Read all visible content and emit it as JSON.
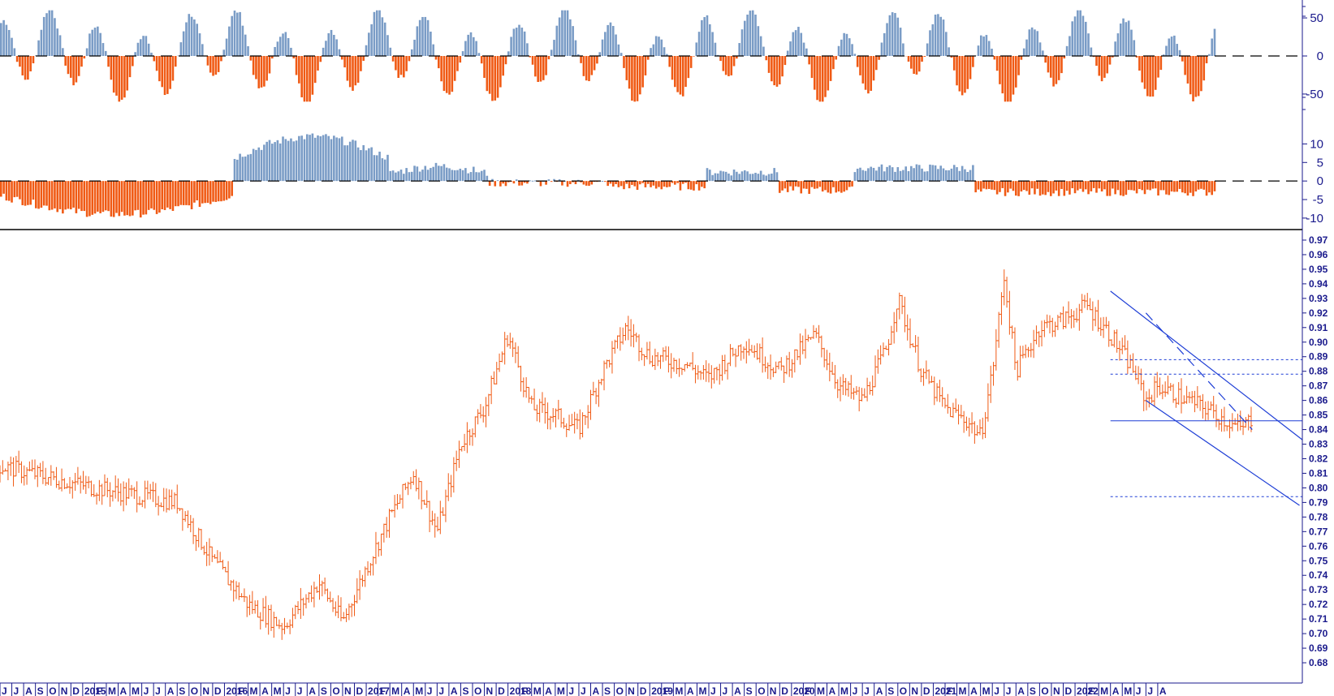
{
  "colors": {
    "positive": "#7a9cc6",
    "negative": "#f05a14",
    "price": "#f05a14",
    "trend": "#1f3fd6",
    "axis": "#1a1a8c"
  },
  "chart_data": [
    {
      "type": "bar",
      "panel": "oscillator-upper",
      "yticks": [
        50,
        0,
        -50
      ],
      "ylim": [
        -65,
        65
      ],
      "zero_line": "dashed"
    },
    {
      "type": "bar",
      "panel": "oscillator-lower",
      "yticks": [
        10,
        5,
        0,
        -5,
        -10
      ],
      "ylim": [
        -12,
        16
      ],
      "zero_line": "dashed"
    },
    {
      "type": "line",
      "panel": "price",
      "yticks": [
        "0.97",
        "0.96",
        "0.95",
        "0.94",
        "0.93",
        "0.92",
        "0.91",
        "0.90",
        "0.89",
        "0.88",
        "0.87",
        "0.86",
        "0.85",
        "0.84",
        "0.83",
        "0.82",
        "0.81",
        "0.80",
        "0.79",
        "0.78",
        "0.77",
        "0.76",
        "0.75",
        "0.74",
        "0.73",
        "0.72",
        "0.71",
        "0.70",
        "0.69",
        "0.68"
      ],
      "ylim": [
        0.67,
        0.975
      ],
      "x_labels": [
        "J",
        "J",
        "A",
        "S",
        "O",
        "N",
        "D",
        "2015",
        "F",
        "M",
        "A",
        "M",
        "J",
        "J",
        "A",
        "S",
        "O",
        "N",
        "D",
        "2016",
        "F",
        "M",
        "A",
        "M",
        "J",
        "J",
        "A",
        "S",
        "O",
        "N",
        "D",
        "2017",
        "F",
        "M",
        "A",
        "M",
        "J",
        "J",
        "A",
        "S",
        "O",
        "N",
        "D",
        "2018",
        "F",
        "M",
        "A",
        "M",
        "J",
        "J",
        "A",
        "S",
        "O",
        "N",
        "D",
        "2019",
        "F",
        "M",
        "A",
        "M",
        "J",
        "J",
        "A",
        "S",
        "O",
        "N",
        "D",
        "2020",
        "F",
        "M",
        "A",
        "M",
        "J",
        "J",
        "A",
        "S",
        "O",
        "N",
        "D",
        "2021",
        "F",
        "M",
        "A",
        "M",
        "J",
        "J",
        "A",
        "S",
        "O",
        "N",
        "D",
        "2022",
        "F",
        "M",
        "A",
        "M",
        "J",
        "J",
        "A"
      ],
      "anchors": [
        [
          0,
          0.815
        ],
        [
          8,
          0.8
        ],
        [
          15,
          0.79
        ],
        [
          18,
          0.75
        ],
        [
          21,
          0.72
        ],
        [
          24,
          0.705
        ],
        [
          27,
          0.735
        ],
        [
          29,
          0.708
        ],
        [
          31,
          0.745
        ],
        [
          33,
          0.78
        ],
        [
          35,
          0.81
        ],
        [
          37,
          0.77
        ],
        [
          39,
          0.83
        ],
        [
          41,
          0.855
        ],
        [
          43,
          0.905
        ],
        [
          45,
          0.855
        ],
        [
          47,
          0.85
        ],
        [
          49,
          0.84
        ],
        [
          51,
          0.88
        ],
        [
          53,
          0.91
        ],
        [
          55,
          0.89
        ],
        [
          58,
          0.885
        ],
        [
          60,
          0.875
        ],
        [
          63,
          0.9
        ],
        [
          66,
          0.88
        ],
        [
          69,
          0.905
        ],
        [
          71,
          0.87
        ],
        [
          73,
          0.86
        ],
        [
          75,
          0.895
        ],
        [
          76,
          0.93
        ],
        [
          78,
          0.88
        ],
        [
          80,
          0.855
        ],
        [
          81,
          0.85
        ],
        [
          82,
          0.845
        ],
        [
          83,
          0.835
        ],
        [
          84,
          0.88
        ],
        [
          85,
          0.945
        ],
        [
          86,
          0.88
        ],
        [
          88,
          0.91
        ],
        [
          90,
          0.915
        ],
        [
          92,
          0.925
        ],
        [
          94,
          0.905
        ],
        [
          96,
          0.88
        ],
        [
          97,
          0.86
        ],
        [
          98,
          0.87
        ],
        [
          100,
          0.862
        ],
        [
          102,
          0.855
        ],
        [
          103,
          0.85
        ],
        [
          104,
          0.845
        ],
        [
          105,
          0.84
        ],
        [
          106,
          0.848
        ]
      ],
      "horizontal_levels": [
        0.888,
        0.878,
        0.846,
        0.794
      ],
      "trendlines": [
        {
          "from": [
            94,
            0.935
          ],
          "to": [
            115,
            0.833
          ],
          "style": "solid"
        },
        {
          "from": [
            97,
            0.92
          ],
          "to": [
            106,
            0.84
          ],
          "style": "dashed"
        },
        {
          "from": [
            97,
            0.86
          ],
          "to": [
            110,
            0.788
          ],
          "style": "solid"
        },
        {
          "from": [
            94,
            0.846
          ],
          "to": [
            115,
            0.846
          ],
          "style": "solid"
        }
      ]
    }
  ]
}
